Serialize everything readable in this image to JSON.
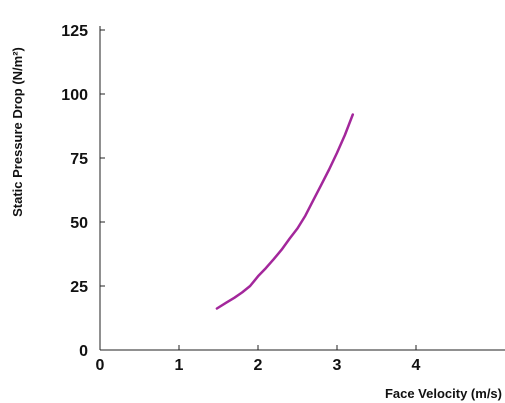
{
  "chart_data": {
    "type": "line",
    "title": "",
    "xlabel": "Face Velocity (m/s)",
    "ylabel": "Static Pressure Drop (N/m²)",
    "xlim": [
      0,
      5.2
    ],
    "ylim": [
      0,
      125
    ],
    "x_ticks": [
      0,
      1,
      2,
      3,
      4
    ],
    "y_ticks": [
      0,
      25,
      50,
      75,
      100,
      125
    ],
    "x_tick_labels": [
      "0",
      "1",
      "2",
      "3",
      "4"
    ],
    "y_tick_labels": [
      "0",
      "25",
      "50",
      "75",
      "100",
      "125"
    ],
    "grid": false,
    "legend": "none",
    "series": [
      {
        "color": "#a3279b",
        "x": [
          1.48,
          1.6,
          1.7,
          1.8,
          1.9,
          2.0,
          2.1,
          2.2,
          2.3,
          2.4,
          2.5,
          2.6,
          2.7,
          2.8,
          2.9,
          3.0,
          3.1,
          3.2
        ],
        "y": [
          16.2,
          18.5,
          20.4,
          22.5,
          25,
          28.8,
          32,
          35.5,
          39.2,
          43.5,
          47.5,
          52.5,
          58.5,
          64.5,
          70.5,
          77,
          84,
          92
        ]
      }
    ]
  }
}
